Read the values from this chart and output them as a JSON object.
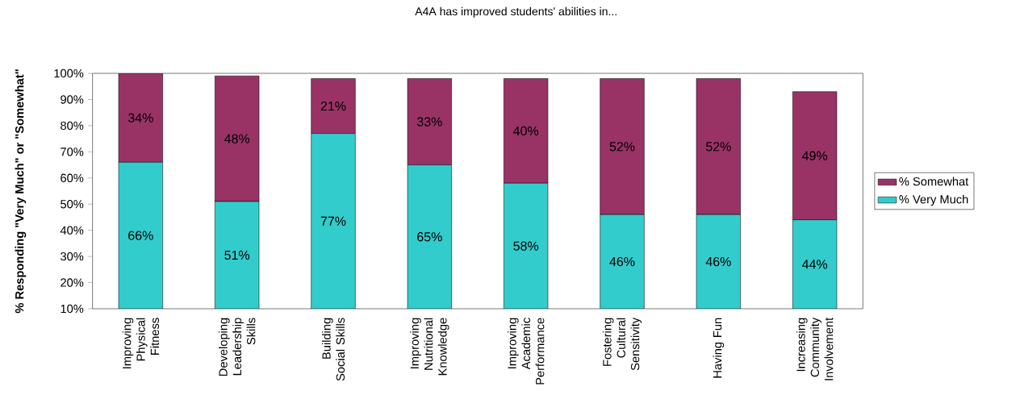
{
  "chart_data": {
    "type": "bar",
    "stacked": true,
    "title": "A4A has improved students' abilities in...",
    "ylabel": "% Responding \"Very Much\" or \"Somewhat\"",
    "categories": [
      "Improving Physical Fitness",
      "Developing Leadership Skills",
      "Building Social Skills",
      "Improving Nutritional Knowledge",
      "Improving Academic Performance",
      "Fostering Cultural Sensitivity",
      "Having Fun",
      "Increasing Community Involvement"
    ],
    "series": [
      {
        "name": "% Very Much",
        "color": "#33cccc",
        "values": [
          66,
          51,
          77,
          65,
          58,
          46,
          46,
          44
        ],
        "value_labels": [
          "66%",
          "51%",
          "77%",
          "65%",
          "58%",
          "46%",
          "46%",
          "44%"
        ]
      },
      {
        "name": "% Somewhat",
        "color": "#993366",
        "values": [
          34,
          48,
          21,
          33,
          40,
          52,
          52,
          49
        ],
        "value_labels": [
          "34%",
          "48%",
          "21%",
          "33%",
          "40%",
          "52%",
          "52%",
          "49%"
        ]
      }
    ],
    "ylim": [
      10,
      100
    ],
    "yticks": [
      {
        "value": 10,
        "label": "10%"
      },
      {
        "value": 20,
        "label": "20%"
      },
      {
        "value": 30,
        "label": "30%"
      },
      {
        "value": 40,
        "label": "40%"
      },
      {
        "value": 50,
        "label": "50%"
      },
      {
        "value": 60,
        "label": "60%"
      },
      {
        "value": 70,
        "label": "70%"
      },
      {
        "value": 80,
        "label": "80%"
      },
      {
        "value": 90,
        "label": "90%"
      },
      {
        "value": 100,
        "label": "100%"
      }
    ],
    "grid": false,
    "legend": "right"
  }
}
